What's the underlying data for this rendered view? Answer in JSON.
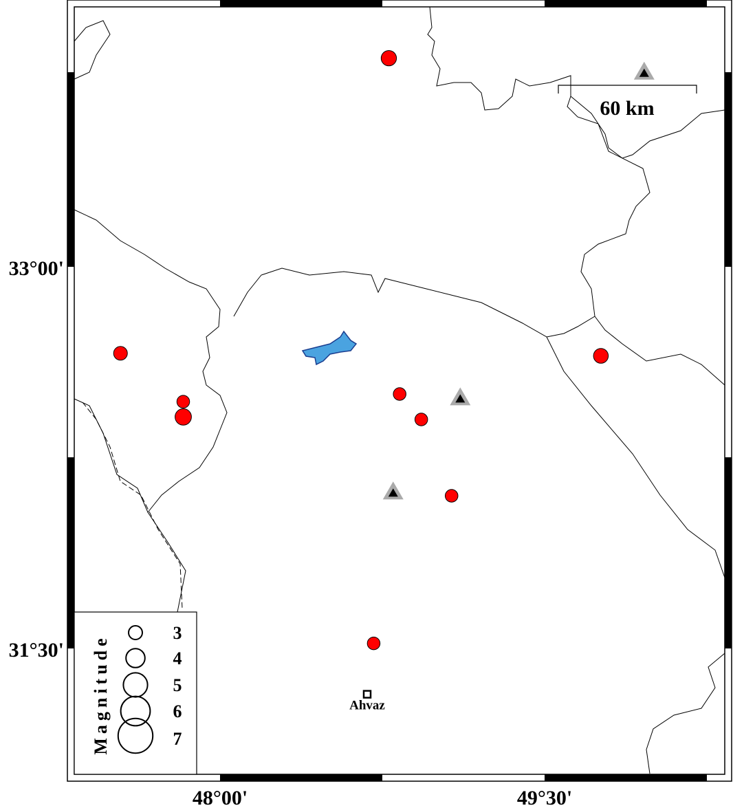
{
  "map": {
    "axes": {
      "x_ticks": [
        {
          "label": "48°00'",
          "lon": 48.0
        },
        {
          "label": "49°30'",
          "lon": 49.5
        }
      ],
      "y_ticks": [
        {
          "label": "33°00'",
          "lat": 33.0
        },
        {
          "label": "31°30'",
          "lat": 31.5
        }
      ],
      "lon_range": [
        47.3,
        50.3
      ],
      "lat_range": [
        31.0,
        34.0
      ]
    },
    "scale_bar": {
      "label": "60 km"
    },
    "city": {
      "name": "Ahvaz",
      "lon": 48.68,
      "lat": 31.32
    },
    "colors": {
      "event": "#ff0000",
      "station_outer": "#aaaaaa",
      "station_inner": "#000000",
      "lake": "#4aa3e0"
    },
    "legend": {
      "title": "Magnitude",
      "items": [
        {
          "label": "3",
          "mag": 3
        },
        {
          "label": "4",
          "mag": 4
        },
        {
          "label": "5",
          "mag": 5
        },
        {
          "label": "6",
          "mag": 6
        },
        {
          "label": "7",
          "mag": 7
        }
      ]
    },
    "events": [
      {
        "lon": 48.78,
        "lat": 33.82,
        "mag": 3.3
      },
      {
        "lon": 47.54,
        "lat": 32.66,
        "mag": 3.0
      },
      {
        "lon": 47.83,
        "lat": 32.47,
        "mag": 2.8
      },
      {
        "lon": 47.83,
        "lat": 32.41,
        "mag": 3.5
      },
      {
        "lon": 48.83,
        "lat": 32.5,
        "mag": 2.8
      },
      {
        "lon": 48.93,
        "lat": 32.4,
        "mag": 2.8
      },
      {
        "lon": 49.07,
        "lat": 32.1,
        "mag": 2.8
      },
      {
        "lon": 49.76,
        "lat": 32.65,
        "mag": 3.2
      },
      {
        "lon": 48.71,
        "lat": 31.52,
        "mag": 2.8
      }
    ],
    "stations": [
      {
        "lon": 49.96,
        "lat": 33.76
      },
      {
        "lon": 49.11,
        "lat": 32.48
      },
      {
        "lon": 48.8,
        "lat": 32.11
      }
    ]
  }
}
